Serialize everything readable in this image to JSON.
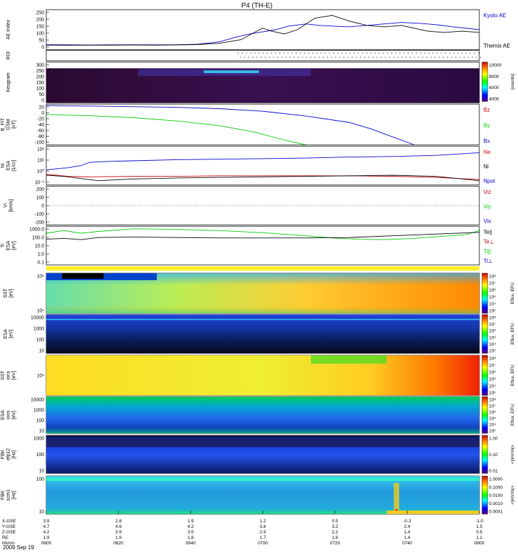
{
  "title": "P4 (TH-E)",
  "date_label": "2009 Sep 19",
  "colors": {
    "blue": "#0000cc",
    "green": "#00cc00",
    "red": "#cc0000",
    "black": "#000000"
  },
  "colorbars": [
    {
      "labels": [
        "10000",
        "8000",
        "6000",
        "4000"
      ],
      "unit": "[counts]"
    },
    {
      "labels": [
        "10⁸",
        "10⁷",
        "10⁶",
        "10⁵",
        "10⁴",
        "10³"
      ],
      "unit": "Eflux, EFU"
    },
    {
      "labels": [
        "10⁸",
        "10⁷",
        "10⁶",
        "10⁵",
        "10⁴",
        "10³"
      ],
      "unit": "Eflux, EFU"
    },
    {
      "labels": [
        "10⁸",
        "10⁷",
        "10⁶",
        "10⁵",
        "10⁴",
        "10³"
      ],
      "unit": "Eflux, EFU"
    },
    {
      "labels": [
        "10⁸",
        "10⁷",
        "10⁶",
        "10⁵",
        "10⁴",
        "10³"
      ],
      "unit": "Eflux, EFU"
    },
    {
      "labels": [
        "1.00",
        "0.10",
        "0.01"
      ],
      "unit": "<|mV/m|>"
    },
    {
      "labels": [
        "1.0000",
        "0.1000",
        "0.0100",
        "0.0010",
        "0.0001"
      ],
      "unit": "<|mV/m|>"
    }
  ],
  "chart_data": {
    "type": "line",
    "x_label": "hhmm",
    "x_ticks": [
      "0600",
      "0620",
      "0640",
      "0700",
      "0720",
      "0740",
      "0800"
    ],
    "ephemeris": [
      {
        "label": "X-GSE",
        "values": [
          "3.9",
          "2.8",
          "1.9",
          "1.2",
          "0.5",
          "-0.3",
          "-1.0"
        ]
      },
      {
        "label": "Y-GSE",
        "values": [
          "4.7",
          "4.6",
          "4.2",
          "3.8",
          "3.2",
          "2.4",
          "1.5"
        ]
      },
      {
        "label": "Z-GSE",
        "values": [
          "4.2",
          "3.9",
          "3.5",
          "2.9",
          "2.2",
          "1.4",
          "0.5"
        ]
      },
      {
        "label": "RE",
        "values": [
          "1.9",
          "1.9",
          "1.8",
          "1.7",
          "1.6",
          "1.4",
          "1.1"
        ]
      }
    ],
    "panels": [
      {
        "id": "ae",
        "ylabel": [
          "AE Index"
        ],
        "y_ticks": [
          "250",
          "200",
          "150",
          "100",
          "50",
          "0"
        ],
        "ylim": [
          -20,
          260
        ],
        "legend": [
          {
            "name": "Kyoto AE",
            "color": "#0000cc"
          },
          {
            "name": "Themis AE",
            "color": "#000000"
          }
        ],
        "series": [
          {
            "name": "Kyoto AE",
            "color": "#0000cc",
            "points": [
              [
                0,
                15
              ],
              [
                0.05,
                14
              ],
              [
                0.1,
                13
              ],
              [
                0.15,
                14
              ],
              [
                0.2,
                15
              ],
              [
                0.25,
                14
              ],
              [
                0.3,
                15
              ],
              [
                0.35,
                18
              ],
              [
                0.4,
                35
              ],
              [
                0.44,
                70
              ],
              [
                0.47,
                90
              ],
              [
                0.5,
                105
              ],
              [
                0.53,
                120
              ],
              [
                0.56,
                145
              ],
              [
                0.6,
                160
              ],
              [
                0.63,
                150
              ],
              [
                0.66,
                145
              ],
              [
                0.7,
                140
              ],
              [
                0.74,
                150
              ],
              [
                0.78,
                160
              ],
              [
                0.82,
                170
              ],
              [
                0.86,
                165
              ],
              [
                0.9,
                155
              ],
              [
                0.94,
                140
              ],
              [
                1,
                120
              ]
            ]
          },
          {
            "name": "Themis AE",
            "color": "#000000",
            "points": [
              [
                0,
                12
              ],
              [
                0.05,
                11
              ],
              [
                0.1,
                12
              ],
              [
                0.15,
                12
              ],
              [
                0.2,
                13
              ],
              [
                0.25,
                12
              ],
              [
                0.3,
                14
              ],
              [
                0.35,
                16
              ],
              [
                0.4,
                25
              ],
              [
                0.45,
                50
              ],
              [
                0.48,
                100
              ],
              [
                0.5,
                130
              ],
              [
                0.52,
                110
              ],
              [
                0.55,
                90
              ],
              [
                0.58,
                120
              ],
              [
                0.62,
                200
              ],
              [
                0.66,
                220
              ],
              [
                0.7,
                180
              ],
              [
                0.74,
                150
              ],
              [
                0.78,
                140
              ],
              [
                0.82,
                150
              ],
              [
                0.85,
                130
              ],
              [
                0.88,
                110
              ],
              [
                0.92,
                100
              ],
              [
                0.96,
                110
              ],
              [
                1,
                100
              ]
            ]
          }
        ]
      },
      {
        "id": "roi",
        "ylabel": [
          "ROI"
        ],
        "y_ticks": []
      },
      {
        "id": "keogram",
        "ylabel": [
          "Keogram"
        ],
        "y_ticks": [
          "300",
          "250",
          "200",
          "150",
          "100",
          "50",
          "0"
        ]
      },
      {
        "id": "bfit",
        "ylabel": [
          "B_FIT",
          "GSM",
          "[nT]"
        ],
        "y_ticks": [
          "20",
          "0",
          "-20",
          "-40",
          "-60",
          "-80",
          "-100"
        ],
        "ylim": [
          -105,
          22
        ],
        "legend": [
          {
            "name": "Bz",
            "color": "#cc0000"
          },
          {
            "name": "By",
            "color": "#00cc00"
          },
          {
            "name": "Bx",
            "color": "#0000cc"
          }
        ],
        "series": [
          {
            "name": "Bx",
            "color": "#0000cc",
            "points": [
              [
                0,
                18
              ],
              [
                0.1,
                16
              ],
              [
                0.2,
                14
              ],
              [
                0.3,
                12
              ],
              [
                0.4,
                8
              ],
              [
                0.5,
                0
              ],
              [
                0.6,
                -15
              ],
              [
                0.7,
                -35
              ],
              [
                0.75,
                -55
              ],
              [
                0.8,
                -80
              ],
              [
                0.85,
                -105
              ]
            ]
          },
          {
            "name": "By",
            "color": "#00cc00",
            "points": [
              [
                0,
                -10
              ],
              [
                0.1,
                -14
              ],
              [
                0.2,
                -20
              ],
              [
                0.3,
                -30
              ],
              [
                0.4,
                -45
              ],
              [
                0.48,
                -65
              ],
              [
                0.55,
                -90
              ],
              [
                0.6,
                -105
              ]
            ]
          }
        ]
      },
      {
        "id": "ni",
        "ylabel": [
          "Ni",
          "ESA",
          "[1/cc]"
        ],
        "y_ticks": [
          "10²",
          "10¹",
          "10⁰",
          "10⁻¹"
        ],
        "log": true,
        "ylim": [
          -1.3,
          2.3
        ],
        "legend": [
          {
            "name": "Ne",
            "color": "#cc0000"
          },
          {
            "name": "Ni",
            "color": "#000000"
          },
          {
            "name": "Npot",
            "color": "#0000cc"
          }
        ],
        "series": [
          {
            "name": "Npot",
            "color": "#0000cc",
            "points": [
              [
                0,
                0.1
              ],
              [
                0.05,
                0.3
              ],
              [
                0.08,
                0.5
              ],
              [
                0.1,
                0.8
              ],
              [
                0.15,
                0.9
              ],
              [
                0.2,
                0.95
              ],
              [
                0.3,
                1.05
              ],
              [
                0.4,
                1.1
              ],
              [
                0.5,
                1.15
              ],
              [
                0.6,
                1.2
              ],
              [
                0.7,
                1.3
              ],
              [
                0.8,
                1.35
              ],
              [
                0.9,
                1.45
              ],
              [
                1,
                1.7
              ]
            ]
          },
          {
            "name": "Ne",
            "color": "#cc0000",
            "points": [
              [
                0,
                -0.3
              ],
              [
                0.05,
                -0.5
              ],
              [
                0.1,
                -0.55
              ],
              [
                0.2,
                -0.5
              ],
              [
                0.3,
                -0.5
              ],
              [
                0.4,
                -0.45
              ],
              [
                0.5,
                -0.45
              ],
              [
                0.6,
                -0.45
              ],
              [
                0.7,
                -0.45
              ],
              [
                0.8,
                -0.5
              ],
              [
                0.9,
                -0.6
              ],
              [
                1,
                -0.8
              ]
            ]
          },
          {
            "name": "Ni",
            "color": "#000000",
            "points": [
              [
                0,
                -0.4
              ],
              [
                0.04,
                -0.5
              ],
              [
                0.08,
                -0.7
              ],
              [
                0.12,
                -0.9
              ],
              [
                0.2,
                -0.75
              ],
              [
                0.3,
                -0.65
              ],
              [
                0.4,
                -0.6
              ],
              [
                0.5,
                -0.55
              ],
              [
                0.6,
                -0.5
              ],
              [
                0.7,
                -0.45
              ],
              [
                0.8,
                -0.4
              ],
              [
                0.9,
                -0.5
              ],
              [
                1,
                -0.9
              ]
            ]
          }
        ]
      },
      {
        "id": "vi",
        "ylabel": [
          "Vi",
          "[km/s]"
        ],
        "y_ticks": [
          "200",
          "100",
          "0",
          "-100",
          "-200"
        ],
        "ylim": [
          -250,
          250
        ],
        "legend": [
          {
            "name": "Viz",
            "color": "#cc0000"
          },
          {
            "name": "Viy",
            "color": "#00cc00"
          },
          {
            "name": "Vix",
            "color": "#0000cc"
          }
        ],
        "series": []
      },
      {
        "id": "ti",
        "ylabel": [
          "Ti",
          "ESA",
          "[eV]"
        ],
        "y_ticks": [
          "1000.0",
          "100.0",
          "10.0",
          "1.0",
          "0.1"
        ],
        "log": true,
        "ylim": [
          -1.2,
          3.3
        ],
        "legend": [
          {
            "name": "Te||",
            "color": "#000000"
          },
          {
            "name": "Te⊥",
            "color": "#cc0000"
          },
          {
            "name": "Ti||",
            "color": "#00cc00"
          },
          {
            "name": "Ti⊥",
            "color": "#0000cc"
          }
        ],
        "series": [
          {
            "name": "Ti||",
            "color": "#00cc00",
            "points": [
              [
                0,
                2.5
              ],
              [
                0.04,
                2.8
              ],
              [
                0.08,
                2.5
              ],
              [
                0.12,
                2.7
              ],
              [
                0.2,
                3.0
              ],
              [
                0.3,
                2.95
              ],
              [
                0.4,
                2.8
              ],
              [
                0.5,
                2.55
              ],
              [
                0.6,
                2.2
              ],
              [
                0.66,
                1.95
              ],
              [
                0.72,
                1.8
              ],
              [
                0.78,
                1.75
              ],
              [
                0.85,
                1.9
              ],
              [
                0.92,
                2.15
              ],
              [
                0.97,
                2.35
              ],
              [
                1,
                2.8
              ]
            ]
          },
          {
            "name": "Te||",
            "color": "#000000",
            "points": [
              [
                0,
                1.8
              ],
              [
                0.04,
                1.9
              ],
              [
                0.08,
                1.75
              ],
              [
                0.12,
                2.0
              ],
              [
                0.2,
                2.05
              ],
              [
                0.3,
                2.0
              ],
              [
                0.4,
                1.95
              ],
              [
                0.5,
                1.95
              ],
              [
                0.6,
                1.95
              ],
              [
                0.7,
                2.0
              ],
              [
                0.8,
                2.2
              ],
              [
                0.9,
                2.4
              ],
              [
                1,
                2.6
              ]
            ]
          }
        ]
      },
      {
        "id": "sst_e",
        "ylabel": [
          "SST",
          "[eV]"
        ],
        "y_ticks": [
          "10⁶",
          "10⁵"
        ]
      },
      {
        "id": "esa_e",
        "ylabel": [
          "ESA",
          "[eV]"
        ],
        "y_ticks": [
          "10000",
          "1000",
          "100",
          "10"
        ]
      },
      {
        "id": "sst_i",
        "ylabel": [
          "SST",
          "ions",
          "[eV]"
        ],
        "y_ticks": [
          "10⁵"
        ]
      },
      {
        "id": "esa_i",
        "ylabel": [
          "ESA",
          "ions",
          "[eV]"
        ],
        "y_ticks": [
          "10000",
          "1000",
          "100",
          "10"
        ]
      },
      {
        "id": "fbk1",
        "ylabel": [
          "FBK",
          "efp12",
          "[Hz]"
        ],
        "y_ticks": [
          "1000",
          "100",
          "10"
        ]
      },
      {
        "id": "fbk2",
        "ylabel": [
          "FBK",
          "scm1",
          "[Hz]"
        ],
        "y_ticks": [
          "100",
          "10"
        ]
      }
    ]
  }
}
